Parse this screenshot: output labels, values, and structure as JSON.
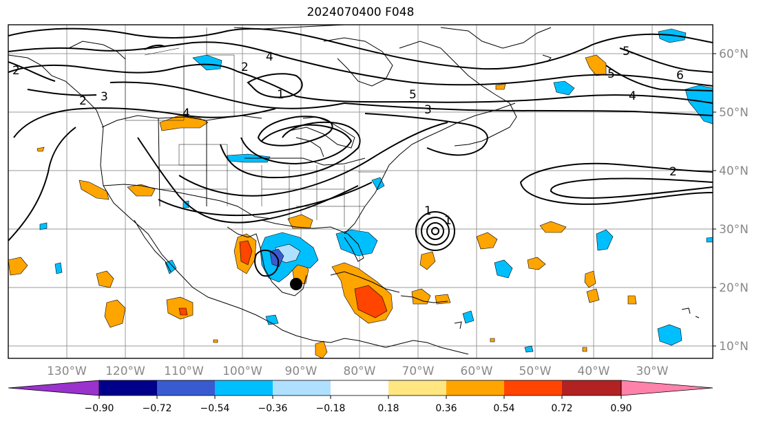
{
  "title": "2024070400 F048",
  "map": {
    "lon_labels": [
      "130°W",
      "120°W",
      "110°W",
      "100°W",
      "90°W",
      "80°W",
      "70°W",
      "60°W",
      "50°W",
      "40°W",
      "30°W"
    ],
    "lat_labels": [
      "60°N",
      "50°N",
      "40°N",
      "30°N",
      "20°N",
      "10°N"
    ],
    "contour_labels": [
      "1",
      "2",
      "2",
      "2",
      "3",
      "3",
      "4",
      "4",
      "4",
      "5",
      "5",
      "5",
      "6",
      "2",
      "1",
      "1"
    ],
    "marker": "storm-center"
  },
  "colorbar": {
    "ticks": [
      "−0.90",
      "−0.72",
      "−0.54",
      "−0.36",
      "−0.18",
      "0.18",
      "0.36",
      "0.54",
      "0.72",
      "0.90"
    ],
    "colors": [
      "#9a32cd",
      "#00008b",
      "#3a5bd0",
      "#00bfff",
      "#b0e0ff",
      "#ffffff",
      "#ffe680",
      "#ffa500",
      "#ff4500",
      "#b22222",
      "#ff82ab"
    ]
  }
}
